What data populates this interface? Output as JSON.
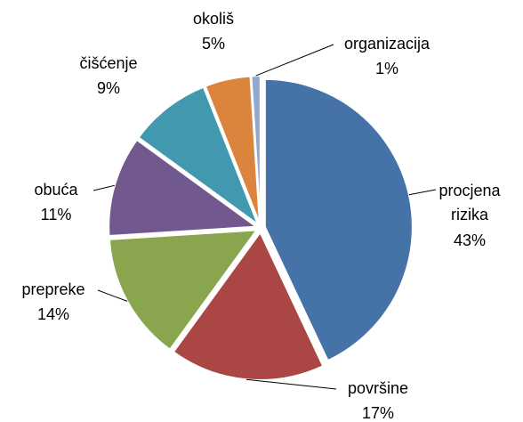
{
  "chart_data": {
    "type": "pie",
    "categories": [
      "procjena rizika",
      "površine",
      "prepreke",
      "obuća",
      "čišćenje",
      "okoliš",
      "organizacija"
    ],
    "values": [
      43,
      17,
      14,
      11,
      9,
      5,
      1
    ],
    "value_labels": [
      "43%",
      "17%",
      "14%",
      "11%",
      "9%",
      "5%",
      "1%"
    ],
    "colors": [
      "#4572a7",
      "#aa4643",
      "#89a54e",
      "#71588f",
      "#4198af",
      "#db843d",
      "#93a9cf"
    ]
  }
}
